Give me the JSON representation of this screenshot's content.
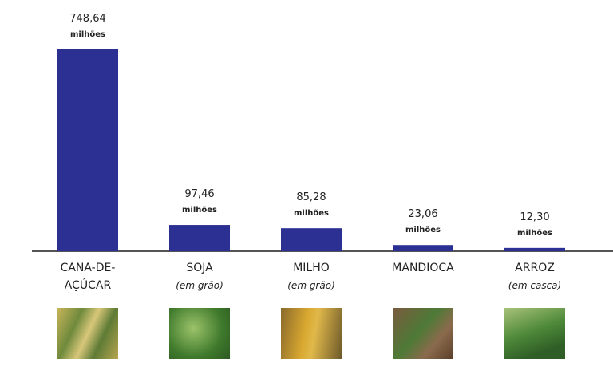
{
  "chart_data": {
    "type": "bar",
    "categories": [
      "CANA-DE-AÇÚCAR",
      "SOJA",
      "MILHO",
      "MANDIOCA",
      "ARROZ"
    ],
    "category_notes": [
      null,
      "(em grão)",
      "(em grão)",
      null,
      "(em casca)"
    ],
    "values": [
      748.64,
      97.46,
      85.28,
      23.06,
      12.3
    ],
    "value_labels": [
      "748,64",
      "97,46",
      "85,28",
      "23,06",
      "12,30"
    ],
    "unit_label": "milhões",
    "color": "#2c3092"
  }
}
